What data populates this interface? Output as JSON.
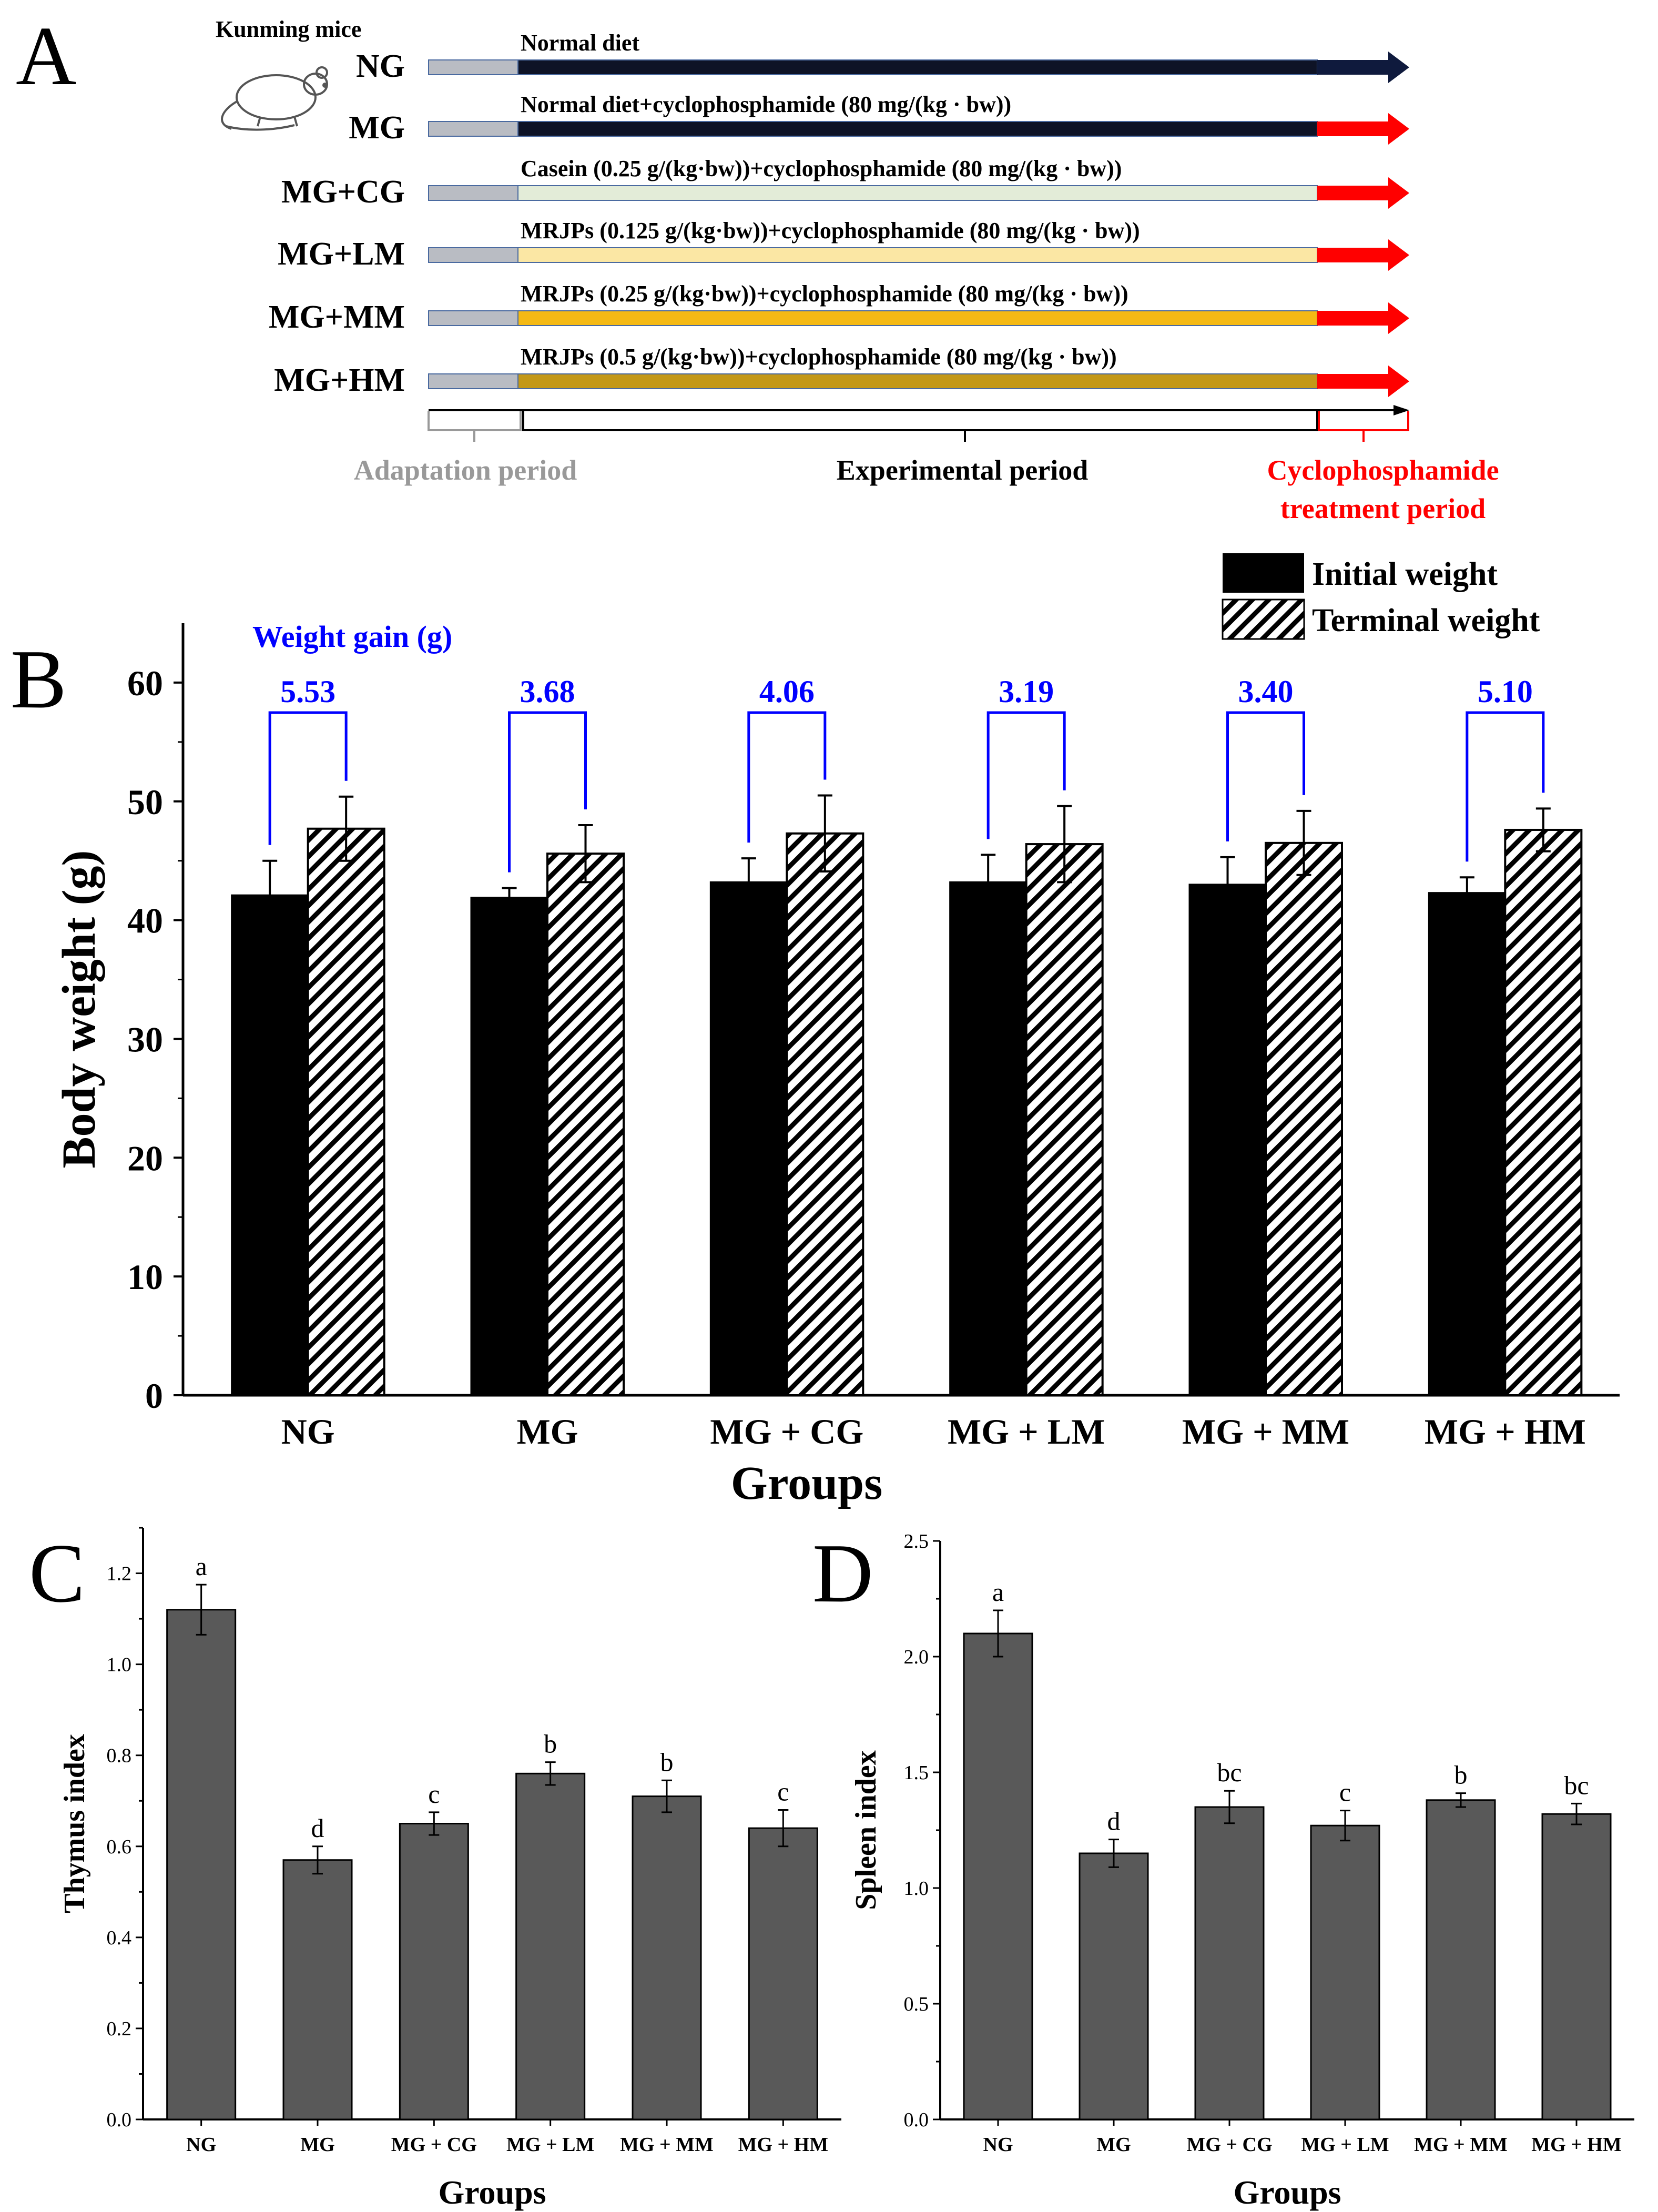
{
  "colors": {
    "adaptation_gray": "#b9bcc3",
    "ng_bar": "#0e1326",
    "mg_bar": "#0e1326",
    "cg_bar": "#e3ecd8",
    "lm_bar": "#fbe7a4",
    "mm_bar": "#f4b914",
    "hm_bar": "#c39818",
    "arrow_blue": "#0f1a3d",
    "red": "#ff0000",
    "blue": "#0000ff",
    "panel_gray": "#595959",
    "bar_border": "#4a6aa0"
  },
  "panelA": {
    "letter": "A",
    "mice_label": "Kunming mice",
    "mouse_icon": "mouse-icon",
    "rows": [
      {
        "group": "NG",
        "description": "Normal diet",
        "end_color": "#0f1a3d"
      },
      {
        "group": "MG",
        "description": "Normal diet+cyclophosphamide (80 mg/(kg · bw))",
        "end_color": "#ff0000"
      },
      {
        "group": "MG+CG",
        "description": "Casein (0.25 g/(kg·bw))+cyclophosphamide (80 mg/(kg · bw))",
        "end_color": "#ff0000"
      },
      {
        "group": "MG+LM",
        "description": "MRJPs (0.125 g/(kg·bw))+cyclophosphamide (80 mg/(kg · bw))",
        "end_color": "#ff0000"
      },
      {
        "group": "MG+MM",
        "description": "MRJPs (0.25 g/(kg·bw))+cyclophosphamide (80 mg/(kg · bw))",
        "end_color": "#ff0000"
      },
      {
        "group": "MG+HM",
        "description": "MRJPs (0.5 g/(kg·bw))+cyclophosphamide (80 mg/(kg · bw))",
        "end_color": "#ff0000"
      }
    ],
    "adaptation_label": "Adaptation period",
    "experimental_label": "Experimental period",
    "cyclo_label_line1": "Cyclophosphamide",
    "cyclo_label_line2": "treatment period"
  },
  "chart_data": [
    {
      "panel": "B",
      "type": "bar",
      "xlabel": "Groups",
      "ylabel": "Body weight (g)",
      "ylim": [
        0,
        65
      ],
      "yticks": [
        0,
        10,
        20,
        30,
        40,
        50,
        60
      ],
      "categories": [
        "NG",
        "MG",
        "MG + CG",
        "MG + LM",
        "MG + MM",
        "MG + HM"
      ],
      "series": [
        {
          "name": "Initial weight",
          "values": [
            42.1,
            41.9,
            43.2,
            43.2,
            43.0,
            42.3
          ],
          "errors": [
            2.9,
            0.8,
            2.0,
            2.3,
            2.3,
            1.3
          ],
          "fill": "solid-black"
        },
        {
          "name": "Terminal weight",
          "values": [
            47.7,
            45.6,
            47.3,
            46.4,
            46.5,
            47.6
          ],
          "errors": [
            2.7,
            2.4,
            3.2,
            3.2,
            2.7,
            1.8
          ],
          "fill": "hatched"
        }
      ],
      "annotation_title": "Weight gain (g)",
      "weight_gain": [
        "5.53",
        "3.68",
        "4.06",
        "3.19",
        "3.40",
        "5.10"
      ],
      "legend_placement": "top-right"
    },
    {
      "panel": "C",
      "type": "bar",
      "xlabel": "Groups",
      "ylabel": "Thymus index",
      "ylim": [
        0,
        1.3
      ],
      "yticks": [
        "0.0",
        "0.2",
        "0.4",
        "0.6",
        "0.8",
        "1.0",
        "1.2"
      ],
      "categories": [
        "NG",
        "MG",
        "MG + CG",
        "MG + LM",
        "MG + MM",
        "MG + HM"
      ],
      "values": [
        1.12,
        0.57,
        0.65,
        0.76,
        0.71,
        0.64
      ],
      "errors": [
        0.055,
        0.03,
        0.025,
        0.025,
        0.035,
        0.04
      ],
      "letters": [
        "a",
        "d",
        "c",
        "b",
        "b",
        "c"
      ]
    },
    {
      "panel": "D",
      "type": "bar",
      "xlabel": "Groups",
      "ylabel": "Spleen index",
      "ylim": [
        0,
        2.5
      ],
      "yticks": [
        "0.0",
        "0.5",
        "1.0",
        "1.5",
        "2.0",
        "2.5"
      ],
      "categories": [
        "NG",
        "MG",
        "MG + CG",
        "MG + LM",
        "MG + MM",
        "MG + HM"
      ],
      "values": [
        2.1,
        1.15,
        1.35,
        1.27,
        1.38,
        1.32
      ],
      "errors": [
        0.1,
        0.06,
        0.07,
        0.065,
        0.03,
        0.045
      ],
      "letters": [
        "a",
        "d",
        "bc",
        "c",
        "b",
        "bc"
      ]
    }
  ]
}
